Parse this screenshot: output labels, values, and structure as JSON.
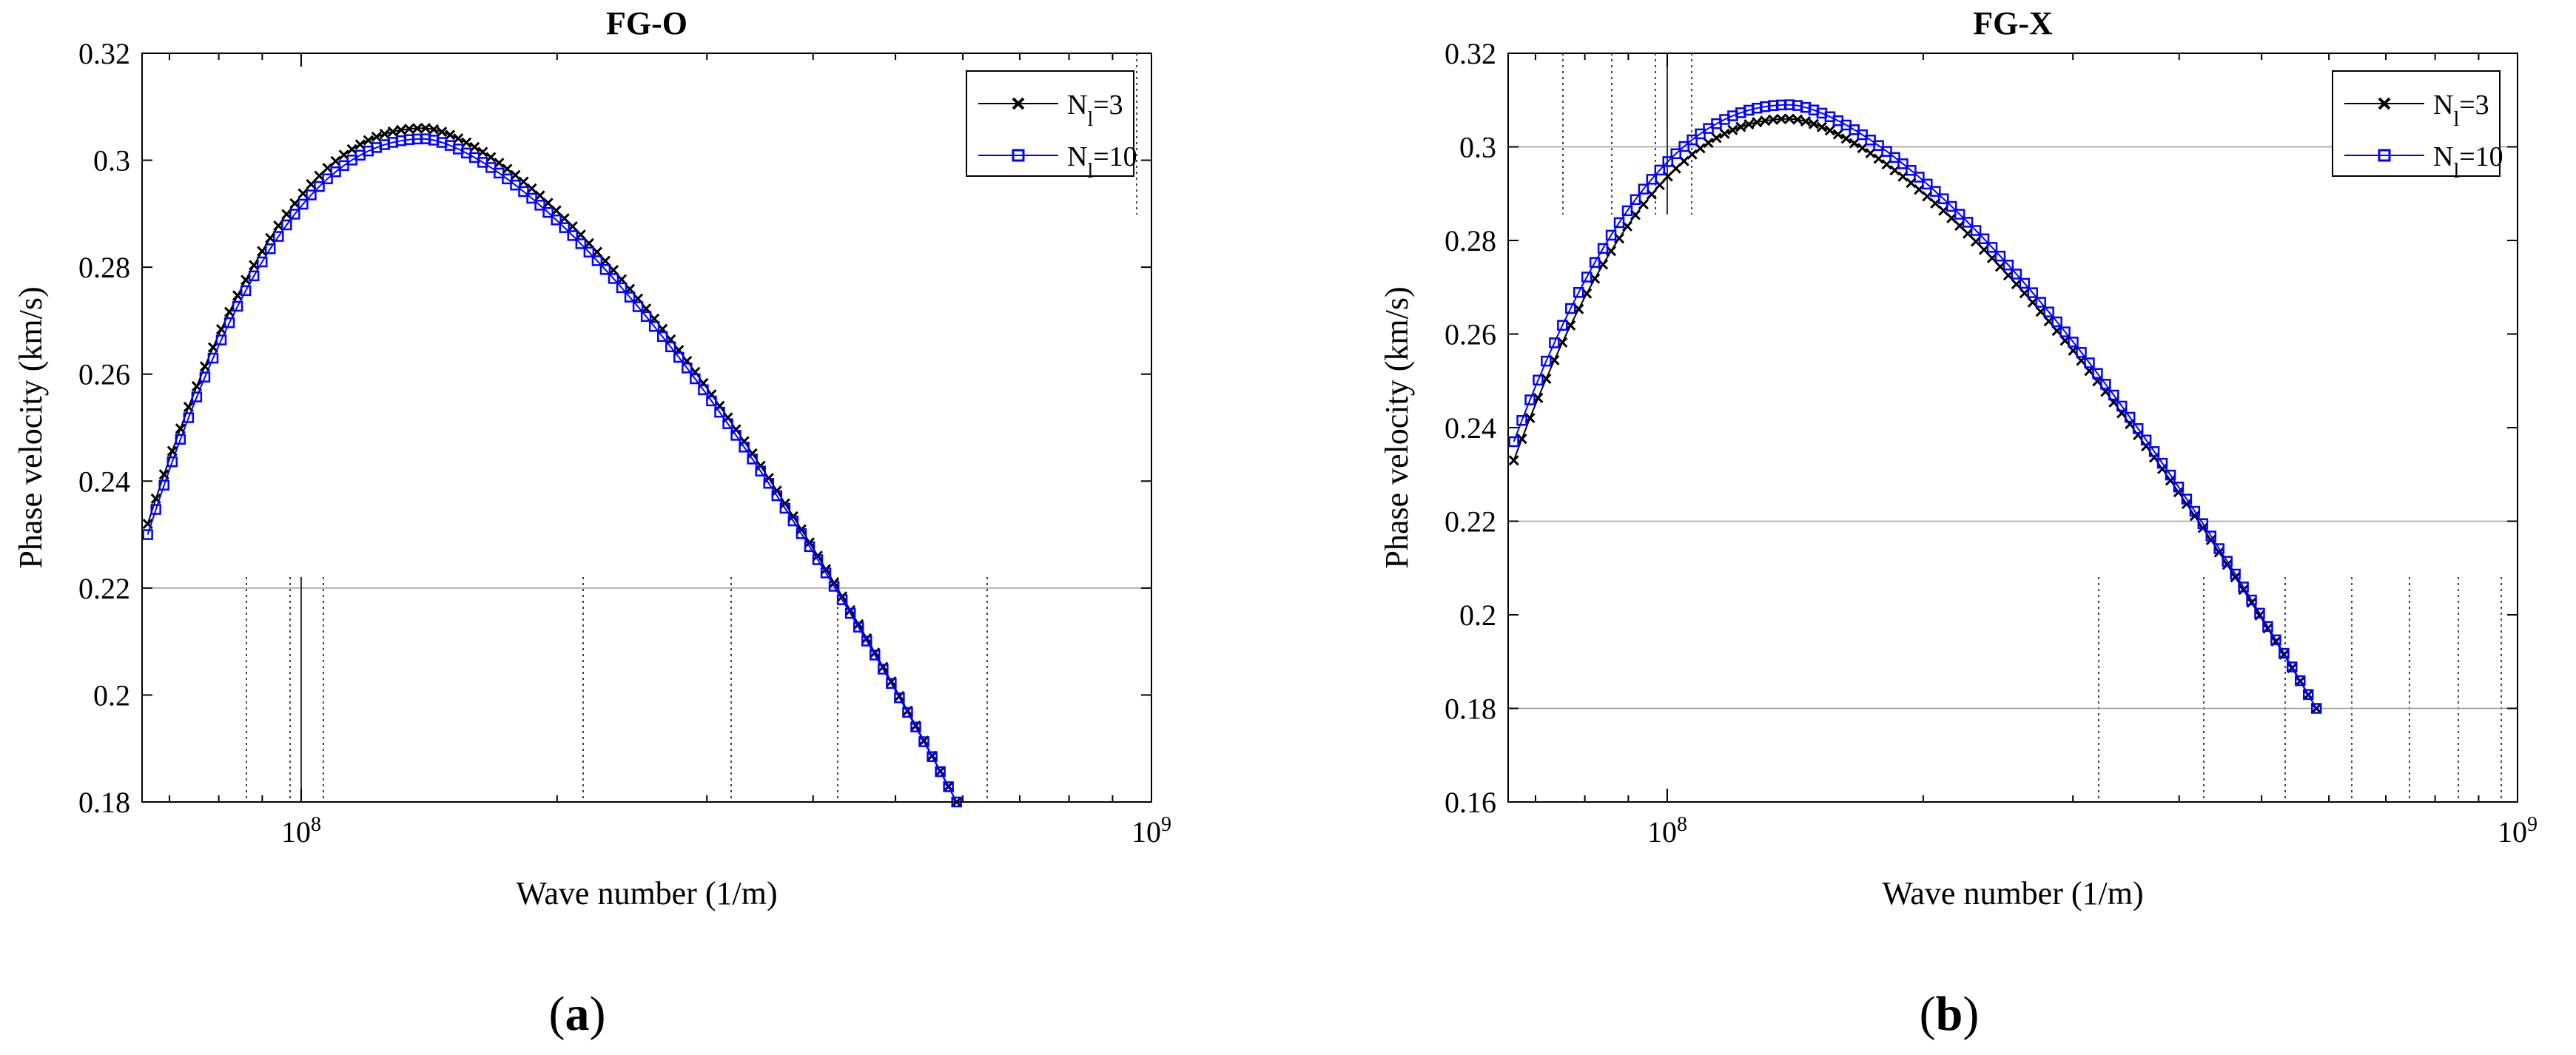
{
  "chart_data": [
    {
      "type": "line",
      "title": "FG-O",
      "xlabel": "Wave number (1/m)",
      "ylabel": "Phase velocity (km/s)",
      "x_scale": "log",
      "xlim": [
        65000000,
        1000000000
      ],
      "ylim": [
        0.18,
        0.32
      ],
      "yticks": [
        0.18,
        0.2,
        0.22,
        0.24,
        0.26,
        0.28,
        0.3,
        0.32
      ],
      "ytick_labels": [
        "0.18",
        "0.2",
        "0.22",
        "0.24",
        "0.26",
        "0.28",
        "0.3",
        "0.32"
      ],
      "xticks": [
        100000000,
        1000000000
      ],
      "xtick_labels": [
        {
          "base": "10",
          "exp": "8"
        },
        {
          "base": "10",
          "exp": "9"
        }
      ],
      "grid": false,
      "legend_position": "top-right",
      "panel_label": "(a)",
      "series": [
        {
          "name": "N_l=3",
          "color": "#000000",
          "marker": "x",
          "peak_x": 140000000,
          "peak_y": 0.306,
          "y_at_start": 0.232,
          "points": 100
        },
        {
          "name": "N_l=10",
          "color": "#0000ff",
          "marker": "square",
          "peak_x": 140000000,
          "peak_y": 0.304,
          "y_at_start": 0.23,
          "points": 100
        }
      ],
      "x_range": [
        66000000,
        590000000
      ],
      "y_at_end": 0.18
    },
    {
      "type": "line",
      "title": "FG-X",
      "xlabel": "Wave number (1/m)",
      "ylabel": "Phase velocity (km/s)",
      "x_scale": "log",
      "xlim": [
        65000000,
        1000000000
      ],
      "ylim": [
        0.16,
        0.32
      ],
      "yticks": [
        0.16,
        0.18,
        0.2,
        0.22,
        0.24,
        0.26,
        0.28,
        0.3,
        0.32
      ],
      "ytick_labels": [
        "0.16",
        "0.18",
        "0.2",
        "0.22",
        "0.24",
        "0.26",
        "0.28",
        "0.3",
        "0.32"
      ],
      "xticks": [
        100000000,
        1000000000
      ],
      "xtick_labels": [
        {
          "base": "10",
          "exp": "8"
        },
        {
          "base": "10",
          "exp": "9"
        }
      ],
      "grid": false,
      "legend_position": "top-right",
      "panel_label": "(b)",
      "series": [
        {
          "name": "N_l=3",
          "color": "#000000",
          "marker": "x",
          "peak_x": 140000000,
          "peak_y": 0.306,
          "y_at_start": 0.233,
          "points": 100
        },
        {
          "name": "N_l=10",
          "color": "#0000ff",
          "marker": "square",
          "peak_x": 140000000,
          "peak_y": 0.309,
          "y_at_start": 0.237,
          "points": 100
        }
      ],
      "x_range": [
        66000000,
        580000000
      ],
      "y_at_end": 0.18
    }
  ]
}
